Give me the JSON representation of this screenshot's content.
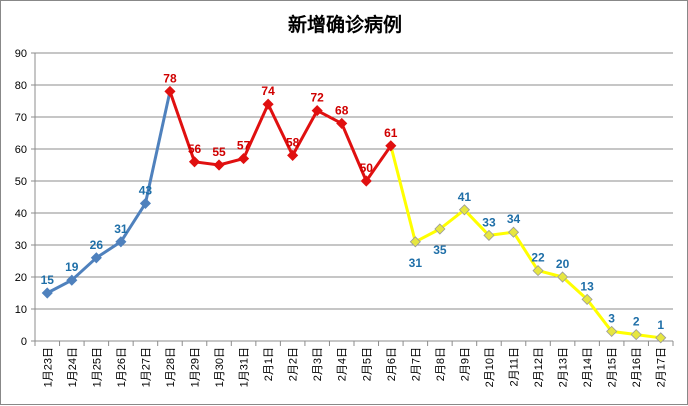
{
  "chart_data": {
    "type": "line",
    "title": "新增确诊病例",
    "categories": [
      "1月23日",
      "1月24日",
      "1月25日",
      "1月26日",
      "1月27日",
      "1月28日",
      "1月29日",
      "1月30日",
      "1月31日",
      "2月1日",
      "2月2日",
      "2月3日",
      "2月4日",
      "2月5日",
      "2月6日",
      "2月7日",
      "2月8日",
      "2月9日",
      "2月10日",
      "2月11日",
      "2月12日",
      "2月13日",
      "2月14日",
      "2月15日",
      "2月16日",
      "2月17日"
    ],
    "values": [
      15,
      19,
      26,
      31,
      43,
      78,
      56,
      55,
      57,
      74,
      58,
      72,
      68,
      50,
      61,
      31,
      35,
      41,
      33,
      34,
      22,
      20,
      13,
      3,
      2,
      1
    ],
    "segments": [
      {
        "from": 0,
        "to": 5,
        "color": "#4F81BD",
        "label_color": "#1F6FA8"
      },
      {
        "from": 5,
        "to": 14,
        "color": "#E01010",
        "label_color": "#D00000"
      },
      {
        "from": 14,
        "to": 25,
        "color": "#FFFF00",
        "marker_color": "#E6E640",
        "label_color": "#1F6FA8"
      }
    ],
    "ylim": [
      0,
      90
    ],
    "yticks": [
      0,
      10,
      20,
      30,
      40,
      50,
      60,
      70,
      80,
      90
    ],
    "grid": true,
    "legend": "none"
  }
}
